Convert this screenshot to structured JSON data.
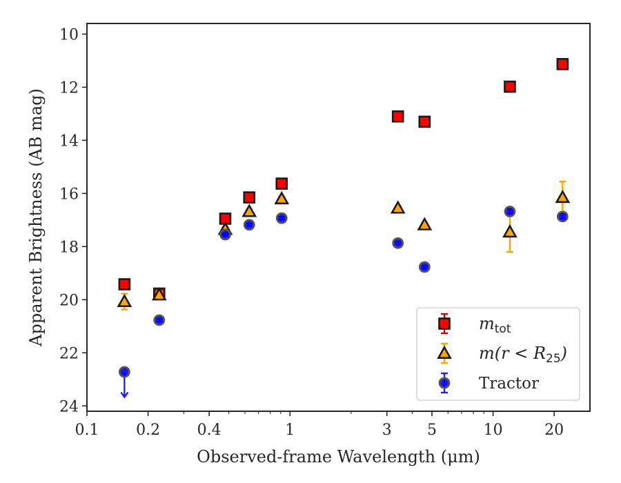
{
  "chart_data": {
    "type": "scatter",
    "xlabel": "Observed-frame Wavelength (μm)",
    "ylabel": "Apparent Brightness (AB mag)",
    "x_scale": "log",
    "xlim": [
      0.1,
      30
    ],
    "ylim": [
      24.2,
      9.6
    ],
    "y_inverted": true,
    "x_ticks": [
      {
        "value": 0.1,
        "label": "0.1"
      },
      {
        "value": 0.2,
        "label": "0.2"
      },
      {
        "value": 0.4,
        "label": "0.4"
      },
      {
        "value": 1,
        "label": "1"
      },
      {
        "value": 3,
        "label": "3"
      },
      {
        "value": 5,
        "label": "5"
      },
      {
        "value": 10,
        "label": "10"
      },
      {
        "value": 20,
        "label": "20"
      }
    ],
    "y_ticks": [
      10,
      12,
      14,
      16,
      18,
      20,
      22,
      24
    ],
    "grid": false,
    "legend_position": "bottom-right",
    "series": [
      {
        "name": "m_tot",
        "label_main": "m",
        "label_sub": "tot",
        "marker": "square",
        "color": "#ff0000",
        "edge_color": "#1a1a1a",
        "error_color": "#d40000",
        "points": [
          {
            "x": 0.153,
            "y": 19.42,
            "err": 0.08
          },
          {
            "x": 0.227,
            "y": 19.77,
            "err": 0.1
          },
          {
            "x": 0.48,
            "y": 16.95,
            "err": 0.05
          },
          {
            "x": 0.63,
            "y": 16.15,
            "err": 0.05
          },
          {
            "x": 0.91,
            "y": 15.63,
            "err": 0.05
          },
          {
            "x": 3.4,
            "y": 13.1,
            "err": 0.05
          },
          {
            "x": 4.6,
            "y": 13.3,
            "err": 0.05
          },
          {
            "x": 12.1,
            "y": 11.98,
            "err": 0.05
          },
          {
            "x": 22.0,
            "y": 11.13,
            "err": 0.05
          }
        ]
      },
      {
        "name": "m(r<R25)",
        "label_main": "m(r < R",
        "label_sub": "25",
        "label_end": ")",
        "marker": "triangle",
        "color": "#ffa500",
        "edge_color": "#1a1a1a",
        "error_color": "#ffa500",
        "points": [
          {
            "x": 0.153,
            "y": 20.07,
            "err": 0.3
          },
          {
            "x": 0.227,
            "y": 19.82,
            "err": 0.12
          },
          {
            "x": 0.48,
            "y": 17.35,
            "err": 0.1
          },
          {
            "x": 0.63,
            "y": 16.68,
            "err": 0.08
          },
          {
            "x": 0.91,
            "y": 16.2,
            "err": 0.08
          },
          {
            "x": 3.4,
            "y": 16.55,
            "err": 0.08
          },
          {
            "x": 4.6,
            "y": 17.18,
            "err": 0.08
          },
          {
            "x": 12.1,
            "y": 17.45,
            "err": 0.75
          },
          {
            "x": 22.0,
            "y": 16.15,
            "err": 0.6
          }
        ]
      },
      {
        "name": "Tractor",
        "label_main": "Tractor",
        "marker": "circle",
        "color": "#0000ff",
        "edge_color": "#555555",
        "error_color": "#2222ee",
        "points": [
          {
            "x": 0.153,
            "y": 22.72,
            "upper_limit": true
          },
          {
            "x": 0.227,
            "y": 20.77,
            "err": 0.05
          },
          {
            "x": 0.48,
            "y": 17.55,
            "err": 0.05
          },
          {
            "x": 0.63,
            "y": 17.18,
            "err": 0.05
          },
          {
            "x": 0.91,
            "y": 16.93,
            "err": 0.05
          },
          {
            "x": 3.4,
            "y": 17.87,
            "err": 0.05
          },
          {
            "x": 4.6,
            "y": 18.77,
            "err": 0.05
          },
          {
            "x": 12.1,
            "y": 16.68,
            "err": 0.08
          },
          {
            "x": 22.0,
            "y": 16.87,
            "err": 0.08
          }
        ]
      }
    ]
  }
}
